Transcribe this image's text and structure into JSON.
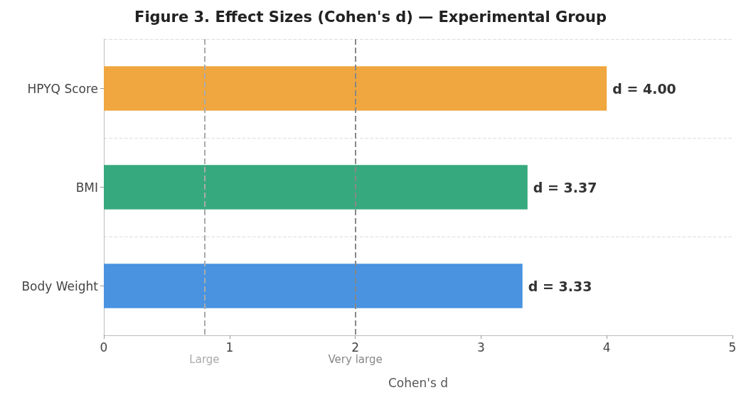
{
  "chart_data": {
    "type": "bar",
    "orientation": "horizontal",
    "title": "Figure 3. Effect Sizes (Cohen's d) — Experimental Group",
    "xlabel": "Cohen's d",
    "categories": [
      "HPYQ Score",
      "BMI",
      "Body Weight"
    ],
    "values": [
      4.0,
      3.37,
      3.33
    ],
    "colors": [
      "#f0a73f",
      "#37a97f",
      "#4993e0"
    ],
    "value_labels": [
      "d = 4.00",
      "d = 3.37",
      "d = 3.33"
    ],
    "xlim": [
      0,
      5
    ],
    "xticks": [
      0,
      1,
      2,
      3,
      4,
      5
    ],
    "grid": "y",
    "ref_lines": [
      {
        "axis": "x",
        "value": 0.8,
        "label": "Large",
        "color": "#aaaaaa",
        "line_style": "dashed"
      },
      {
        "axis": "x",
        "value": 2,
        "label": "Very large",
        "color": "#888888",
        "line_style": "dashed"
      }
    ]
  }
}
